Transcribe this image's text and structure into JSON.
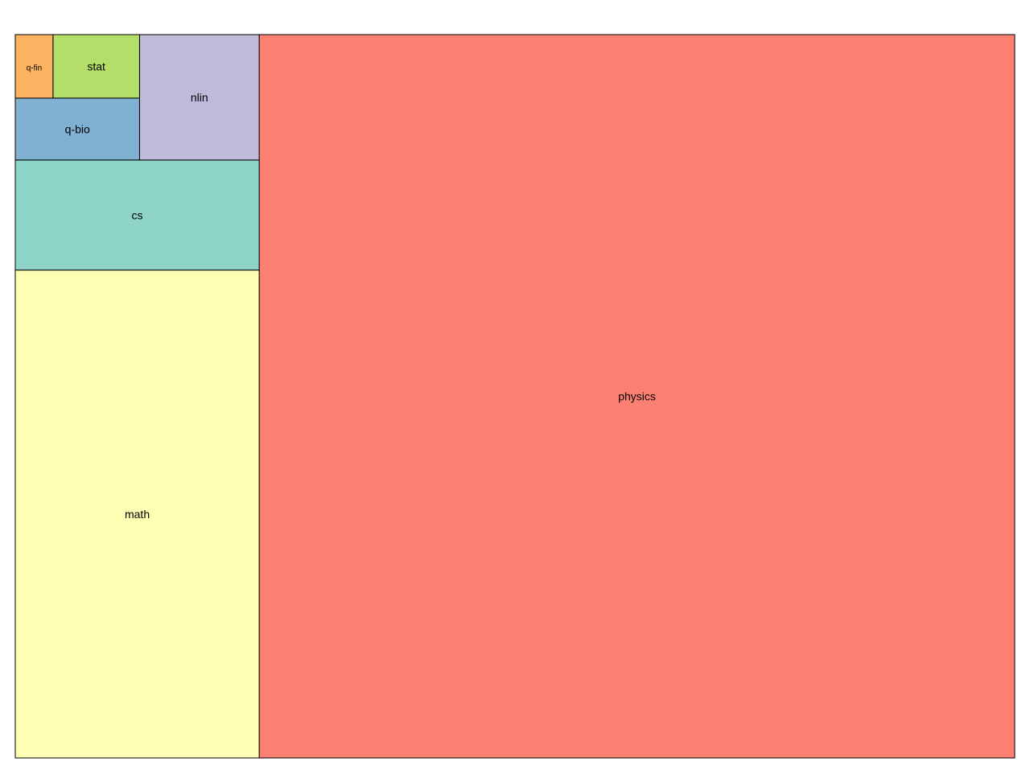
{
  "chart_data": {
    "type": "treemap",
    "title": "",
    "items": [
      {
        "label": "physics",
        "value": 845,
        "color": "#fb8072"
      },
      {
        "label": "math",
        "value": 184,
        "color": "#ffffb3"
      },
      {
        "label": "cs",
        "value": 41.5,
        "color": "#8dd3c7"
      },
      {
        "label": "nlin",
        "value": 23.2,
        "color": "#bebada"
      },
      {
        "label": "q-bio",
        "value": 11.9,
        "color": "#80b1d3"
      },
      {
        "label": "stat",
        "value": 8.5,
        "color": "#b3de69"
      },
      {
        "label": "q-fin",
        "value": 3.7,
        "color": "#fdb462"
      }
    ]
  }
}
